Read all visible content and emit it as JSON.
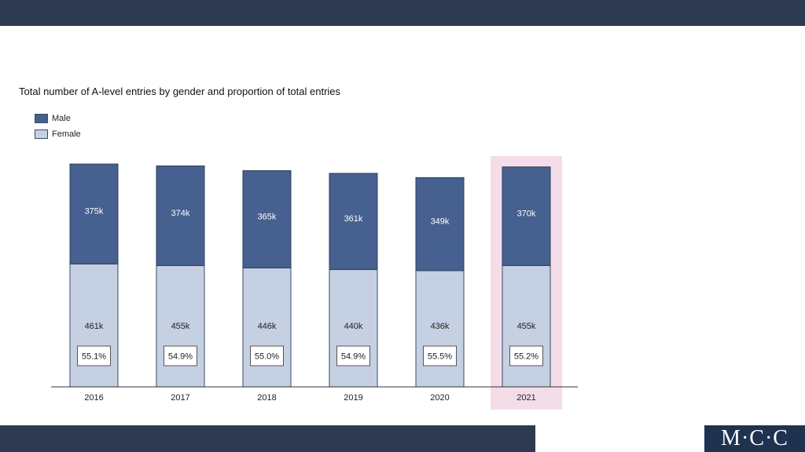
{
  "logo": {
    "text": "M·C·C"
  },
  "chart_data": {
    "type": "bar",
    "stacked": true,
    "title": "Total number of A-level entries by gender and proportion of total entries",
    "categories": [
      "2016",
      "2017",
      "2018",
      "2019",
      "2020",
      "2021"
    ],
    "series": [
      {
        "name": "Female",
        "values": [
          461,
          455,
          446,
          440,
          436,
          455
        ],
        "labels": [
          "461k",
          "455k",
          "446k",
          "440k",
          "436k",
          "455k"
        ],
        "color": "#c5d0e2"
      },
      {
        "name": "Male",
        "values": [
          375,
          374,
          365,
          361,
          349,
          370
        ],
        "labels": [
          "375k",
          "374k",
          "365k",
          "361k",
          "349k",
          "370k"
        ],
        "color": "#46608f"
      }
    ],
    "female_share_labels": [
      "55.1%",
      "54.9%",
      "55.0%",
      "54.9%",
      "55.5%",
      "55.2%"
    ],
    "highlighted_category": "2021",
    "highlight_color": "#f4dde9",
    "legend": {
      "position": "top-left"
    },
    "ylim": [
      0,
      836
    ],
    "grid": false
  }
}
